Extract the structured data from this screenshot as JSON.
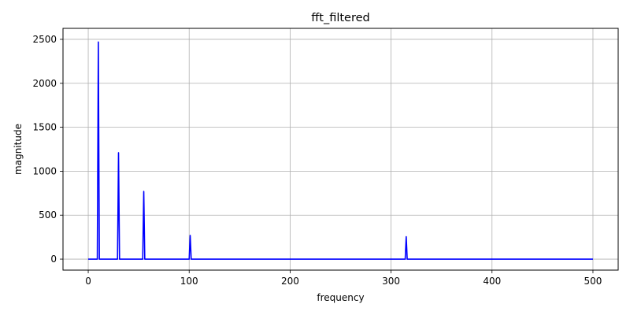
{
  "chart_data": {
    "type": "line",
    "title": "fft_filtered",
    "xlabel": "frequency",
    "ylabel": "magnitude",
    "xlim": [
      -25,
      525
    ],
    "ylim": [
      -125,
      2625
    ],
    "x_ticks": [
      0,
      100,
      200,
      300,
      400,
      500
    ],
    "y_ticks": [
      0,
      500,
      1000,
      1500,
      2000,
      2500
    ],
    "grid": true,
    "series": [
      {
        "color": "#0000ff",
        "x": [
          0,
          9,
          10,
          11,
          29,
          30,
          31,
          54,
          55,
          56,
          100,
          101,
          102,
          314,
          315,
          316,
          500
        ],
        "y": [
          0,
          0,
          2470,
          0,
          0,
          1210,
          0,
          0,
          770,
          0,
          0,
          270,
          0,
          0,
          255,
          0,
          0
        ],
        "extra_points": [
          [
            315.5,
            255
          ]
        ]
      }
    ]
  },
  "colors": {
    "line": "#0000ff",
    "grid": "#b0b0b0",
    "axes": "#000000"
  }
}
